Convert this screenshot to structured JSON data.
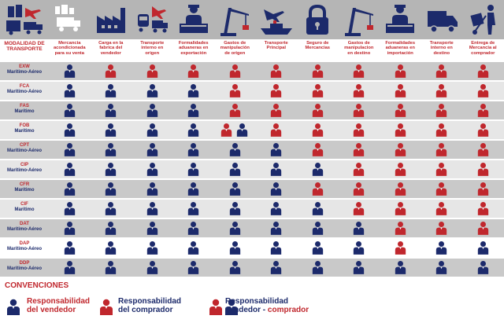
{
  "colors": {
    "seller": "#1c2a6b",
    "buyer": "#c0272d",
    "header_text": "#c0272d"
  },
  "header": {
    "first_column": "MODALIDAD DE\nTRANSPORTE",
    "columns": [
      {
        "label": "Mercancia\nacondicionada\npara su venta",
        "icon": "industry-truck-icon"
      },
      {
        "label": "Carga en la\nfabrica del\nvendedor",
        "icon": "factory-icon"
      },
      {
        "label": "Transporte\ninterno en\norigen",
        "icon": "train-truck-plane-icon"
      },
      {
        "label": "Formalidades\naduaneras en\nexportación",
        "icon": "customs-officer-icon"
      },
      {
        "label": "Gastos de\nmanipulación\nde origen",
        "icon": "crane-icon"
      },
      {
        "label": "Transporte\nPrincipal",
        "icon": "ship-plane-icon"
      },
      {
        "label": "Seguro de\nMercancias",
        "icon": "padlock-icon"
      },
      {
        "label": "Gastos de\nmanipulacion\nen destino",
        "icon": "crane-icon"
      },
      {
        "label": "Formalidades\naduaneras en\nimportación",
        "icon": "customs-officer-icon"
      },
      {
        "label": "Transporte\ninterno en\ndestino",
        "icon": "truck-icon"
      },
      {
        "label": "Entrega de\nMercancia al\ncomprador",
        "icon": "handcart-person-icon"
      }
    ]
  },
  "rows": [
    {
      "code": "EXW",
      "mode": "Marítimo-Aéreo",
      "cells": [
        "S",
        "B",
        "B",
        "B",
        "B",
        "B",
        "B",
        "B",
        "B",
        "B",
        "B"
      ]
    },
    {
      "code": "FCA",
      "mode": "Marítimo-Aéreo",
      "cells": [
        "S",
        "S",
        "S",
        "S",
        "B",
        "B",
        "B",
        "B",
        "B",
        "B",
        "B"
      ]
    },
    {
      "code": "FAS",
      "mode": "Marítimo",
      "cells": [
        "S",
        "S",
        "S",
        "S",
        "B",
        "B",
        "B",
        "B",
        "B",
        "B",
        "B"
      ]
    },
    {
      "code": "FOB",
      "mode": "Marítimo",
      "cells": [
        "S",
        "S",
        "S",
        "S",
        "SB",
        "B",
        "B",
        "B",
        "B",
        "B",
        "B"
      ]
    },
    {
      "code": "CPT",
      "mode": "Marítimo-Aéreo",
      "cells": [
        "S",
        "S",
        "S",
        "S",
        "S",
        "S",
        "B",
        "B",
        "B",
        "B",
        "B"
      ]
    },
    {
      "code": "CIP",
      "mode": "Marítimo-Aéreo",
      "cells": [
        "S",
        "S",
        "S",
        "S",
        "S",
        "S",
        "S",
        "B",
        "B",
        "B",
        "B"
      ]
    },
    {
      "code": "CFR",
      "mode": "Marítimo",
      "cells": [
        "S",
        "S",
        "S",
        "S",
        "S",
        "S",
        "B",
        "B",
        "B",
        "B",
        "B"
      ]
    },
    {
      "code": "CIF",
      "mode": "Marítimo",
      "cells": [
        "S",
        "S",
        "S",
        "S",
        "S",
        "S",
        "S",
        "B",
        "B",
        "B",
        "B"
      ]
    },
    {
      "code": "DAT",
      "mode": "Marítimo-Aéreo",
      "cells": [
        "S",
        "S",
        "S",
        "S",
        "S",
        "S",
        "S",
        "S",
        "B",
        "B",
        "B"
      ]
    },
    {
      "code": "DAP",
      "mode": "Marítimo-Aéreo",
      "cells": [
        "S",
        "S",
        "S",
        "S",
        "S",
        "S",
        "S",
        "S",
        "B",
        "S",
        "S"
      ]
    },
    {
      "code": "DDP",
      "mode": "Marítimo-Aéreo",
      "cells": [
        "S",
        "S",
        "S",
        "S",
        "S",
        "S",
        "S",
        "S",
        "S",
        "S",
        "S"
      ]
    }
  ],
  "legend": {
    "title": "CONVENCIONES",
    "seller_l1": "Responsabilidad",
    "seller_l2": "del vendedor",
    "buyer_l1": "Responsabilidad",
    "buyer_l2": "del comprador",
    "shared_l1": "Responsabilidad",
    "shared_l2a": "vendedor - ",
    "shared_l2b": "comprador"
  }
}
